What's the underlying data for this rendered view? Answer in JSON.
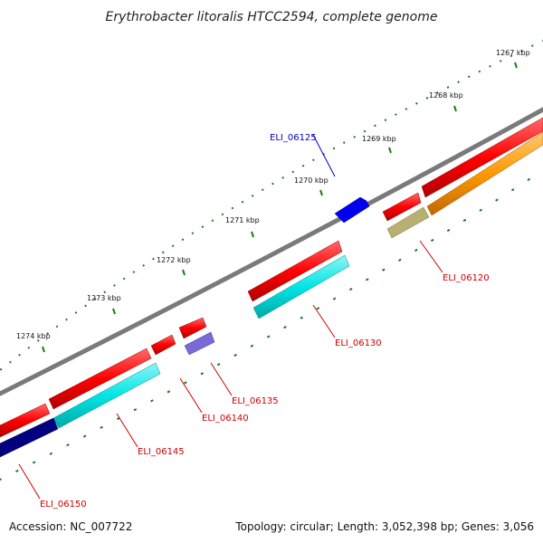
{
  "title": "Erythrobacter litoralis HTCC2594, complete genome",
  "accession_text": "Accession: NC_007722",
  "topology_text": "Topology: circular; Length: 3,052,398 bp; Genes: 3,056",
  "scale_labels": [
    "1267 kbp",
    "1268 kbp",
    "1269 kbp",
    "1270 kbp",
    "1271 kbp",
    "1272 kbp",
    "1273 kbp",
    "1274 kbp"
  ],
  "genes": [
    {
      "id": "ELI_06120",
      "label_color": "#cc0000"
    },
    {
      "id": "ELI_06125",
      "label_color": "#0000cc"
    },
    {
      "id": "ELI_06130",
      "label_color": "#cc0000"
    },
    {
      "id": "ELI_06135",
      "label_color": "#cc0000"
    },
    {
      "id": "ELI_06140",
      "label_color": "#cc0000"
    },
    {
      "id": "ELI_06145",
      "label_color": "#cc0000"
    },
    {
      "id": "ELI_06150",
      "label_color": "#cc0000"
    }
  ],
  "colors": {
    "backbone": "#7a7a7a",
    "cds": "#ff0000",
    "gene_cyan": "#00e5e5",
    "gene_orange": "#ff9900",
    "gene_olive": "#b8b070",
    "gene_blue": "#0000ee",
    "gene_purple": "#7a6ad6",
    "gene_navy": "#000080",
    "tick": "#1a7a1a"
  }
}
